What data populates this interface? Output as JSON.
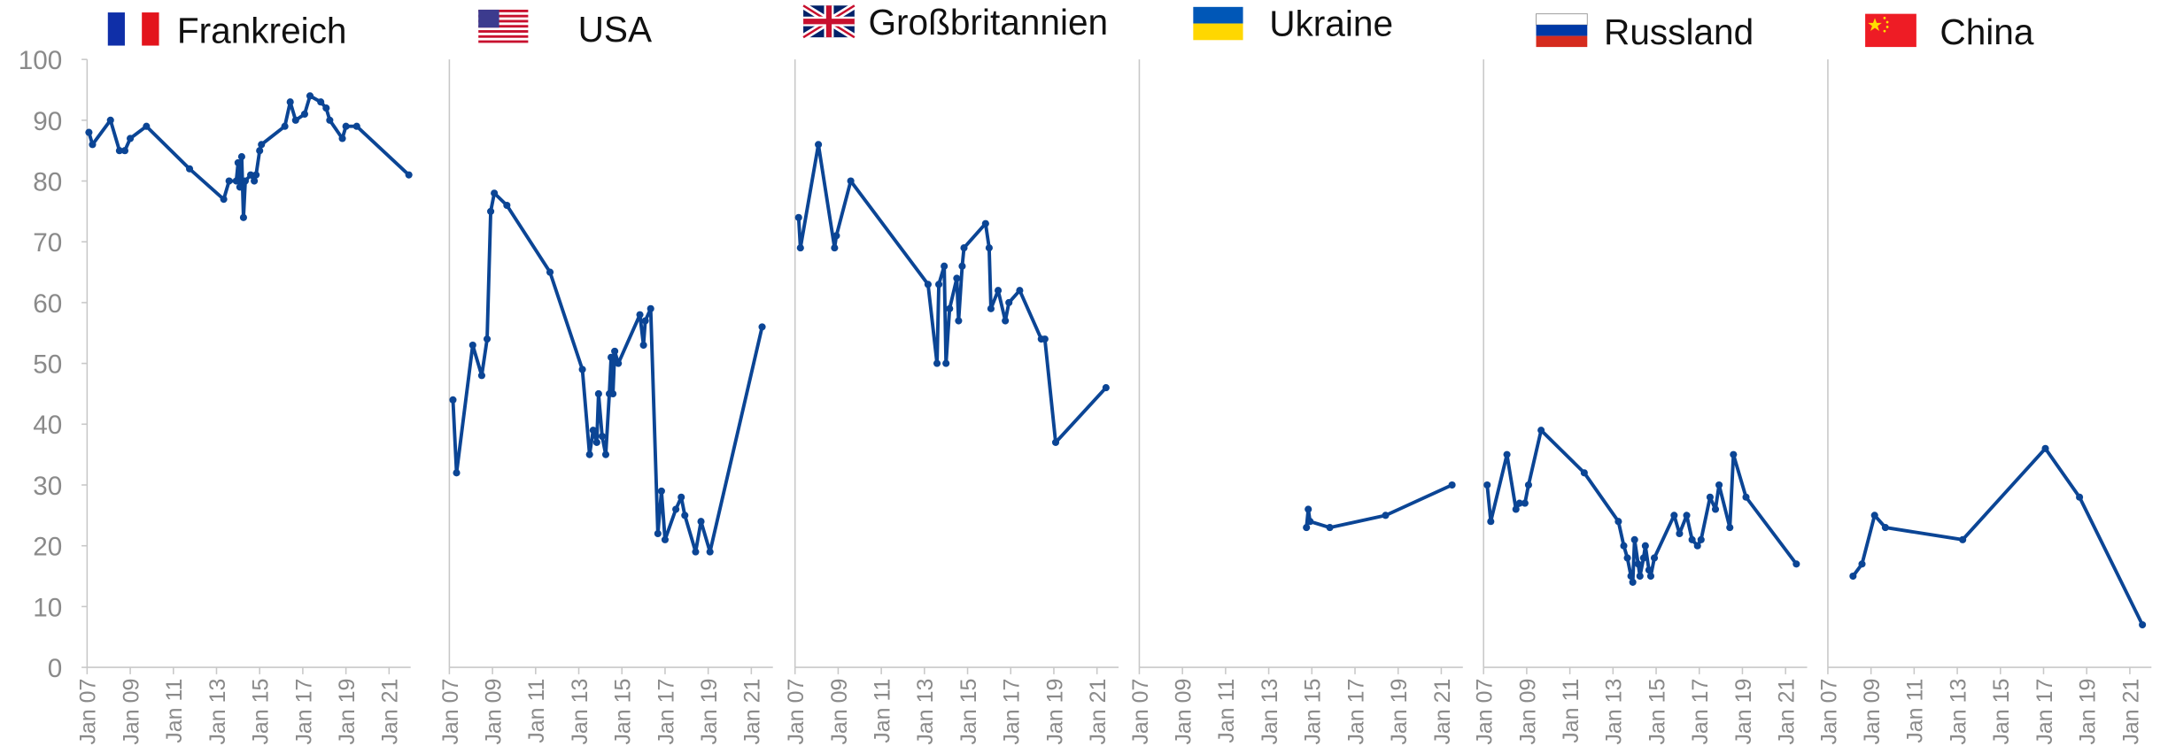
{
  "chart_data": [
    {
      "type": "line",
      "title": "Frankreich",
      "color": "#0b4595",
      "ylim": [
        0,
        100
      ],
      "yticks": [
        0,
        10,
        20,
        30,
        40,
        50,
        60,
        70,
        80,
        90,
        100
      ],
      "xlim": [
        "2007-01",
        "2022-01"
      ],
      "xticks": [
        {
          "value": "2007-01",
          "label": "Jan 07"
        },
        {
          "value": "2009-01",
          "label": "Jan 09"
        },
        {
          "value": "2011-01",
          "label": "Jan 11"
        },
        {
          "value": "2013-01",
          "label": "Jan 13"
        },
        {
          "value": "2015-01",
          "label": "Jan 15"
        },
        {
          "value": "2017-01",
          "label": "Jan 17"
        },
        {
          "value": "2019-01",
          "label": "Jan 19"
        },
        {
          "value": "2021-01",
          "label": "Jan 21"
        }
      ],
      "x": [
        "2007-02",
        "2007-04",
        "2008-02",
        "2008-07",
        "2008-10",
        "2009-01",
        "2009-10",
        "2011-10",
        "2013-05",
        "2013-08",
        "2013-12",
        "2014-01",
        "2014-02",
        "2014-03",
        "2014-04",
        "2014-05",
        "2014-08",
        "2014-10",
        "2014-11",
        "2015-01",
        "2015-02",
        "2016-03",
        "2016-06",
        "2016-09",
        "2017-02",
        "2017-05",
        "2017-11",
        "2018-02",
        "2018-04",
        "2018-11",
        "2019-01",
        "2019-07",
        "2021-12"
      ],
      "values": [
        88,
        86,
        90,
        85,
        85,
        87,
        89,
        82,
        77,
        80,
        80,
        83,
        79,
        84,
        74,
        80,
        81,
        80,
        81,
        85,
        86,
        89,
        93,
        90,
        91,
        94,
        93,
        92,
        90,
        87,
        89,
        89,
        81
      ]
    },
    {
      "type": "line",
      "title": "USA",
      "color": "#0b4595",
      "ylim": [
        0,
        100
      ],
      "xlim": [
        "2007-01",
        "2022-01"
      ],
      "xticks": [
        {
          "value": "2007-01",
          "label": "Jan 07"
        },
        {
          "value": "2009-01",
          "label": "Jan 09"
        },
        {
          "value": "2011-01",
          "label": "Jan 11"
        },
        {
          "value": "2013-01",
          "label": "Jan 13"
        },
        {
          "value": "2015-01",
          "label": "Jan 15"
        },
        {
          "value": "2017-01",
          "label": "Jan 17"
        },
        {
          "value": "2019-01",
          "label": "Jan 19"
        },
        {
          "value": "2021-01",
          "label": "Jan 21"
        }
      ],
      "x": [
        "2007-03",
        "2007-05",
        "2008-02",
        "2008-07",
        "2008-10",
        "2008-12",
        "2009-02",
        "2009-09",
        "2011-09",
        "2013-03",
        "2013-07",
        "2013-09",
        "2013-11",
        "2013-12",
        "2014-02",
        "2014-04",
        "2014-06",
        "2014-07",
        "2014-08",
        "2014-09",
        "2014-11",
        "2015-11",
        "2016-01",
        "2016-02",
        "2016-05",
        "2016-09",
        "2016-11",
        "2017-01",
        "2017-07",
        "2017-10",
        "2017-12",
        "2018-06",
        "2018-09",
        "2019-02",
        "2021-07"
      ],
      "values": [
        44,
        32,
        53,
        48,
        54,
        75,
        78,
        76,
        65,
        49,
        35,
        39,
        37,
        45,
        38,
        35,
        45,
        51,
        45,
        52,
        50,
        58,
        53,
        57,
        59,
        22,
        29,
        21,
        26,
        28,
        25,
        19,
        24,
        19,
        56
      ]
    },
    {
      "type": "line",
      "title": "Großbritannien",
      "color": "#0b4595",
      "ylim": [
        0,
        100
      ],
      "xlim": [
        "2007-01",
        "2022-01"
      ],
      "xticks": [
        {
          "value": "2007-01",
          "label": "Jan 07"
        },
        {
          "value": "2009-01",
          "label": "Jan 09"
        },
        {
          "value": "2011-01",
          "label": "Jan 11"
        },
        {
          "value": "2013-01",
          "label": "Jan 13"
        },
        {
          "value": "2015-01",
          "label": "Jan 15"
        },
        {
          "value": "2017-01",
          "label": "Jan 17"
        },
        {
          "value": "2019-01",
          "label": "Jan 19"
        },
        {
          "value": "2021-01",
          "label": "Jan 21"
        }
      ],
      "x": [
        "2007-03",
        "2007-04",
        "2008-02",
        "2008-11",
        "2008-12",
        "2009-08",
        "2013-03",
        "2013-08",
        "2013-09",
        "2013-12",
        "2014-01",
        "2014-03",
        "2014-07",
        "2014-08",
        "2014-10",
        "2014-11",
        "2015-11",
        "2016-01",
        "2016-02",
        "2016-06",
        "2016-10",
        "2016-12",
        "2017-06",
        "2018-06",
        "2018-08",
        "2019-02",
        "2021-06"
      ],
      "values": [
        74,
        69,
        86,
        69,
        71,
        80,
        63,
        50,
        63,
        66,
        50,
        59,
        64,
        57,
        66,
        69,
        73,
        69,
        59,
        62,
        57,
        60,
        62,
        54,
        54,
        37,
        46
      ]
    },
    {
      "type": "line",
      "title": "Ukraine",
      "color": "#0b4595",
      "ylim": [
        0,
        100
      ],
      "xlim": [
        "2007-01",
        "2022-01"
      ],
      "xticks": [
        {
          "value": "2007-01",
          "label": "Jan 07"
        },
        {
          "value": "2009-01",
          "label": "Jan 09"
        },
        {
          "value": "2011-01",
          "label": "Jan 11"
        },
        {
          "value": "2013-01",
          "label": "Jan 13"
        },
        {
          "value": "2015-01",
          "label": "Jan 15"
        },
        {
          "value": "2017-01",
          "label": "Jan 17"
        },
        {
          "value": "2019-01",
          "label": "Jan 19"
        },
        {
          "value": "2021-01",
          "label": "Jan 21"
        }
      ],
      "x": [
        "2014-10",
        "2014-11",
        "2014-12",
        "2015-11",
        "2018-06",
        "2021-07"
      ],
      "values": [
        23,
        26,
        24,
        23,
        25,
        30
      ]
    },
    {
      "type": "line",
      "title": "Russland",
      "color": "#0b4595",
      "ylim": [
        0,
        100
      ],
      "xlim": [
        "2007-01",
        "2022-01"
      ],
      "xticks": [
        {
          "value": "2007-01",
          "label": "Jan 07"
        },
        {
          "value": "2009-01",
          "label": "Jan 09"
        },
        {
          "value": "2011-01",
          "label": "Jan 11"
        },
        {
          "value": "2013-01",
          "label": "Jan 13"
        },
        {
          "value": "2015-01",
          "label": "Jan 15"
        },
        {
          "value": "2017-01",
          "label": "Jan 17"
        },
        {
          "value": "2019-01",
          "label": "Jan 19"
        },
        {
          "value": "2021-01",
          "label": "Jan 21"
        }
      ],
      "x": [
        "2007-03",
        "2007-05",
        "2008-02",
        "2008-07",
        "2008-09",
        "2008-12",
        "2009-02",
        "2009-09",
        "2011-09",
        "2013-04",
        "2013-07",
        "2013-09",
        "2013-11",
        "2013-12",
        "2014-01",
        "2014-03",
        "2014-04",
        "2014-06",
        "2014-07",
        "2014-09",
        "2014-10",
        "2014-12",
        "2015-11",
        "2016-02",
        "2016-06",
        "2016-09",
        "2016-12",
        "2017-02",
        "2017-07",
        "2017-10",
        "2017-12",
        "2018-06",
        "2018-08",
        "2019-03",
        "2021-07"
      ],
      "values": [
        30,
        24,
        35,
        26,
        27,
        27,
        30,
        39,
        32,
        24,
        20,
        18,
        15,
        14,
        21,
        17,
        15,
        18,
        20,
        16,
        15,
        18,
        25,
        22,
        25,
        21,
        20,
        21,
        28,
        26,
        30,
        23,
        35,
        28,
        17
      ]
    },
    {
      "type": "line",
      "title": "China",
      "color": "#0b4595",
      "ylim": [
        0,
        100
      ],
      "xlim": [
        "2007-01",
        "2022-01"
      ],
      "xticks": [
        {
          "value": "2007-01",
          "label": "Jan 07"
        },
        {
          "value": "2009-01",
          "label": "Jan 09"
        },
        {
          "value": "2011-01",
          "label": "Jan 11"
        },
        {
          "value": "2013-01",
          "label": "Jan 13"
        },
        {
          "value": "2015-01",
          "label": "Jan 15"
        },
        {
          "value": "2017-01",
          "label": "Jan 17"
        },
        {
          "value": "2019-01",
          "label": "Jan 19"
        },
        {
          "value": "2021-01",
          "label": "Jan 21"
        }
      ],
      "x": [
        "2008-03",
        "2008-08",
        "2009-03",
        "2009-09",
        "2013-04",
        "2017-02",
        "2018-09",
        "2021-08"
      ],
      "values": [
        15,
        17,
        25,
        23,
        21,
        36,
        28,
        7
      ]
    }
  ]
}
